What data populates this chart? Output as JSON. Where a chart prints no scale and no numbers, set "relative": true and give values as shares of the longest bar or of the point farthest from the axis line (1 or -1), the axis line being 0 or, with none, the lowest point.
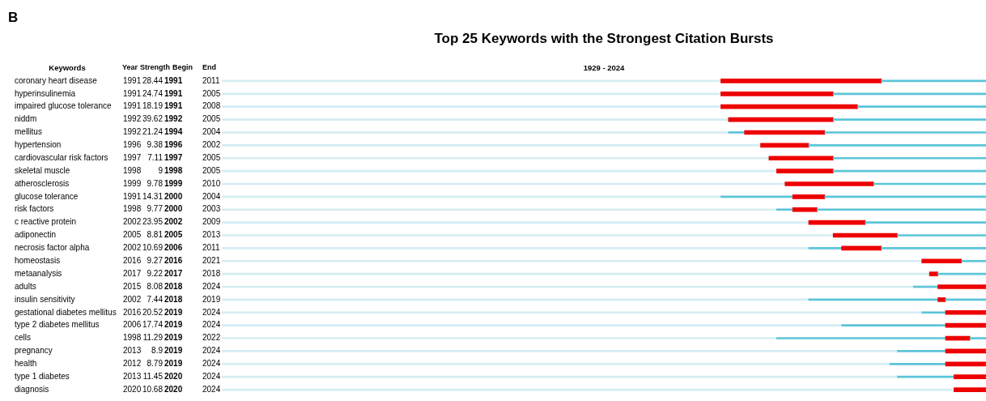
{
  "chart_data": {
    "type": "bar",
    "orientation": "horizontal",
    "stacked": true,
    "title": "Top 25 Keywords with the Strongest Citation Bursts",
    "annotations": [
      "B",
      "Keywords",
      "Year",
      "Strength",
      "Begin",
      "End",
      "1929 - 2024",
      "1991",
      "28.44",
      "1991",
      "2011",
      "1991",
      "24.74",
      "1991",
      "2005",
      "1991",
      "18.19",
      "1991",
      "2008",
      "1992",
      "39.62",
      "1992",
      "2005",
      "1992",
      "21.24",
      "1994",
      "2004",
      "1996",
      "9.38",
      "1996",
      "2002",
      "1997",
      "7.11",
      "1997",
      "2005",
      "1998",
      "9",
      "1998",
      "2005",
      "1999",
      "9.78",
      "1999",
      "2010",
      "1991",
      "14.31",
      "2000",
      "2004",
      "1998",
      "9.77",
      "2000",
      "2003",
      "2002",
      "23.95",
      "2002",
      "2009",
      "2005",
      "8.81",
      "2005",
      "2013",
      "2002",
      "10.69",
      "2006",
      "2011",
      "2016",
      "9.27",
      "2016",
      "2021",
      "2017",
      "9.22",
      "2017",
      "2018",
      "2015",
      "8.08",
      "2018",
      "2024",
      "2002",
      "7.44",
      "2018",
      "2019",
      "2016",
      "20.52",
      "2019",
      "2024",
      "2006",
      "17.74",
      "2019",
      "2024",
      "1998",
      "11.29",
      "2019",
      "2022",
      "2013",
      "8.9",
      "2019",
      "2024",
      "2012",
      "8.79",
      "2019",
      "2024",
      "2013",
      "11.45",
      "2020",
      "2024",
      "2020",
      "10.68",
      "2020",
      "2024"
    ],
    "categories": [
      "coronary heart disease",
      "hyperinsulinemia",
      "impaired glucose tolerance",
      "niddm",
      "mellitus",
      "hypertension",
      "cardiovascular risk factors",
      "skeletal muscle",
      "atherosclerosis",
      "glucose tolerance",
      "risk factors",
      "c reactive protein",
      "adiponectin",
      "necrosis factor alpha",
      "homeostasis",
      "metaanalysis",
      "adults",
      "insulin sensitivity",
      "gestational diabetes mellitus",
      "type 2 diabetes mellitus",
      "cells",
      "pregnancy",
      "health",
      "type 1 diabetes",
      "diagnosis"
    ],
    "tick_labels": "y",
    "relative": true,
    "series": [
      {
        "color": "#d4edf3",
        "values": [
          0.653,
          0.653,
          0.653,
          0.663,
          0.663,
          0.705,
          0.716,
          0.726,
          0.737,
          0.653,
          0.726,
          0.768,
          0.8,
          0.768,
          0.916,
          0.926,
          0.905,
          0.768,
          0.916,
          0.811,
          0.726,
          0.884,
          0.874,
          0.884,
          0.958
        ]
      },
      {
        "color": "#5bc5d8",
        "values": [
          0,
          0,
          0,
          0,
          0.021,
          0,
          0,
          0,
          0,
          0.094,
          0.021,
          0,
          0,
          0.043,
          0,
          0,
          0.032,
          0.169,
          0.031,
          0.136,
          0.221,
          0.063,
          0.073,
          0.074,
          0
        ]
      },
      {
        "color": "#ee0000",
        "values": [
          0.21,
          0.147,
          0.179,
          0.137,
          0.105,
          0.063,
          0.084,
          0.074,
          0.116,
          0.042,
          0.032,
          0.074,
          0.084,
          0.052,
          0.052,
          0.011,
          0.063,
          0.01,
          0.053,
          0.053,
          0.032,
          0.053,
          0.053,
          0.042,
          0.042
        ]
      },
      {
        "color": "#5bc5d8",
        "values": [
          0.137,
          0.2,
          0.168,
          0.2,
          0.211,
          0.232,
          0.2,
          0.2,
          0.147,
          0.211,
          0.221,
          0.158,
          0.116,
          0.137,
          0.032,
          0.063,
          0,
          0.053,
          0,
          0,
          0.021,
          0,
          0,
          0,
          0
        ]
      }
    ]
  }
}
